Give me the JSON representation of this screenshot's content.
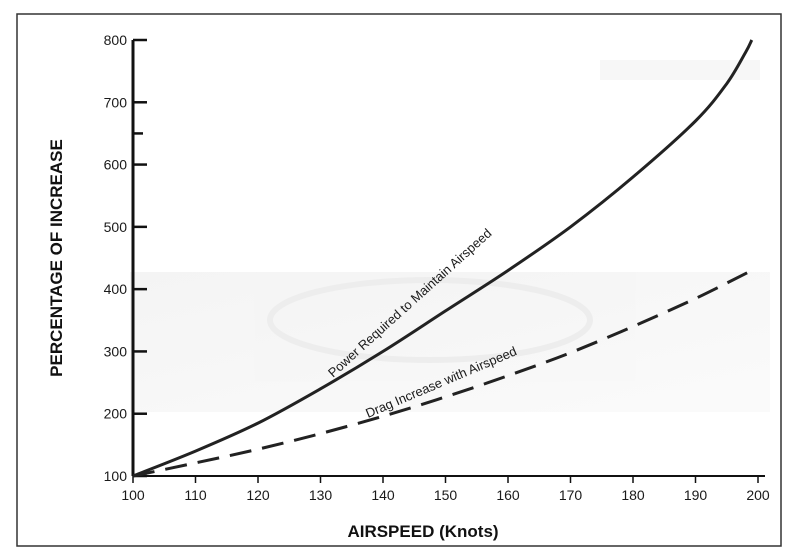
{
  "chart_data": {
    "type": "line",
    "xlabel": "AIRSPEED (Knots)",
    "ylabel": "PERCENTAGE OF INCREASE",
    "xlim": [
      100,
      200
    ],
    "ylim": [
      100,
      800
    ],
    "x_ticks": [
      100,
      110,
      120,
      130,
      140,
      150,
      160,
      170,
      180,
      190,
      200
    ],
    "y_ticks": [
      100,
      200,
      300,
      400,
      500,
      600,
      700,
      800
    ],
    "y_tick_labels": [
      "100",
      "200",
      "300",
      "400",
      "500",
      "600",
      "700",
      "800"
    ],
    "grid": false,
    "series": [
      {
        "name": "Power Required to Maintain Airspeed",
        "style": "solid",
        "color": "#222222",
        "x": [
          100,
          110,
          120,
          130,
          140,
          150,
          160,
          170,
          180,
          190,
          195,
          198,
          199
        ],
        "y": [
          100,
          140,
          185,
          240,
          300,
          365,
          430,
          500,
          580,
          670,
          730,
          780,
          800
        ]
      },
      {
        "name": "Drag Increase with Airspeed",
        "style": "dashed",
        "color": "#222222",
        "x": [
          100,
          110,
          120,
          130,
          140,
          150,
          160,
          170,
          180,
          190,
          199
        ],
        "y": [
          100,
          121,
          143,
          168,
          196,
          227,
          261,
          298,
          340,
          385,
          430
        ]
      }
    ]
  }
}
